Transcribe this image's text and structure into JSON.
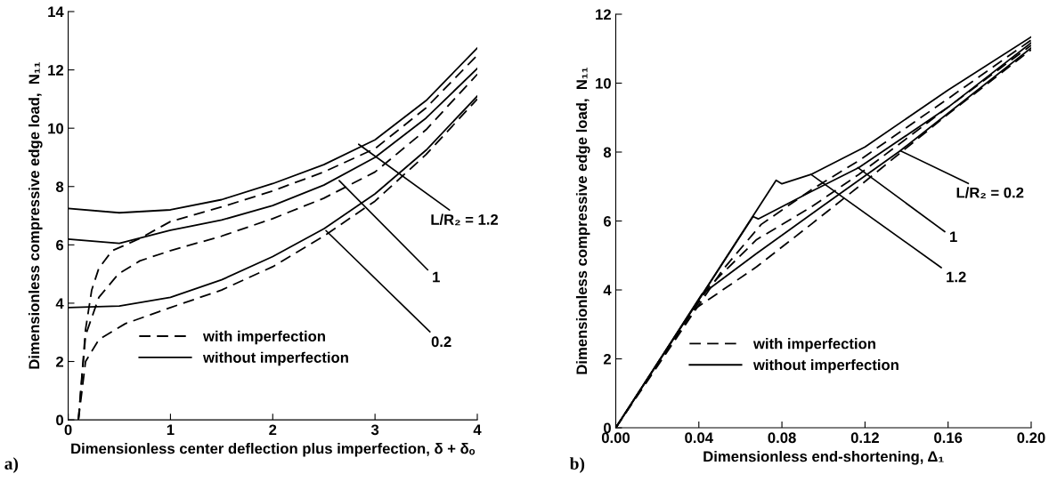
{
  "chart_data": [
    {
      "type": "line",
      "xlabel": "Dimensionless center deflection plus imperfection, δ + δₒ",
      "ylabel": "Dimensionless compressive edge load,  N₁₁",
      "xlim": [
        0,
        4
      ],
      "ylim": [
        0,
        14
      ],
      "xticks": [
        0,
        1,
        2,
        3,
        4
      ],
      "yticks": [
        0,
        2,
        4,
        6,
        8,
        10,
        12,
        14
      ],
      "grid": false,
      "legend": "bottom",
      "marker": "none",
      "series": [
        {
          "name": "with imperfection",
          "color": "#000000",
          "line_style": "dashed",
          "x": [
            0.1,
            0.17,
            0.23,
            0.3,
            0.43,
            0.69,
            1,
            1.5,
            2,
            2.5,
            3,
            3.5,
            4
          ],
          "values": [
            0,
            3.1,
            4.45,
            5.2,
            5.8,
            6.2,
            6.8,
            7.3,
            7.85,
            8.5,
            9.3,
            10.7,
            12.5
          ]
        },
        {
          "color": "#000000",
          "line_style": "dashed",
          "x": [
            0.1,
            0.17,
            0.3,
            0.49,
            0.7,
            1,
            1.5,
            2,
            2.5,
            3,
            3.5,
            4
          ],
          "values": [
            0,
            2.9,
            4.2,
            5.0,
            5.45,
            5.8,
            6.3,
            6.9,
            7.6,
            8.5,
            9.95,
            11.85
          ]
        },
        {
          "color": "#000000",
          "line_style": "dashed",
          "x": [
            0.1,
            0.17,
            0.3,
            0.56,
            1,
            1.5,
            2,
            2.5,
            3,
            3.5,
            4
          ],
          "values": [
            0,
            2.0,
            2.75,
            3.3,
            3.85,
            4.45,
            5.25,
            6.3,
            7.5,
            9.1,
            11.0
          ]
        },
        {
          "name": "without imperfection",
          "color": "#000000",
          "line_style": "solid",
          "x": [
            0,
            0.5,
            1,
            1.5,
            2,
            2.5,
            3,
            3.5,
            4
          ],
          "values": [
            7.25,
            7.1,
            7.2,
            7.55,
            8.1,
            8.75,
            9.6,
            10.95,
            12.75
          ]
        },
        {
          "color": "#000000",
          "line_style": "solid",
          "x": [
            0,
            0.5,
            1,
            1.5,
            2,
            2.5,
            3,
            3.5,
            4
          ],
          "values": [
            6.2,
            6.05,
            6.5,
            6.85,
            7.35,
            8.05,
            9.0,
            10.35,
            12.05
          ]
        },
        {
          "color": "#000000",
          "line_style": "solid",
          "x": [
            0,
            0.5,
            1,
            1.5,
            2,
            2.5,
            3,
            3.5,
            4
          ],
          "values": [
            3.85,
            3.9,
            4.2,
            4.8,
            5.6,
            6.55,
            7.75,
            9.25,
            11.1
          ]
        }
      ],
      "annotations": [
        {
          "text": "L/R₂ = 1.2",
          "x": 2.84,
          "y": 9.45
        },
        {
          "text": "1",
          "x": 2.65,
          "y": 8.2
        },
        {
          "text": "0.2",
          "x": 2.52,
          "y": 6.49
        },
        "a)"
      ]
    },
    {
      "type": "line",
      "xlabel": "Dimensionless end-shortening, Δ₁",
      "ylabel": "Dimensionless compressive edge load,  N₁₁",
      "xlim": [
        0,
        0.2
      ],
      "ylim": [
        0,
        12
      ],
      "xticks": [
        {
          "value": 0,
          "label": "0.00"
        },
        {
          "value": 0.04,
          "label": "0.04"
        },
        {
          "value": 0.08,
          "label": "0.08"
        },
        {
          "value": 0.12,
          "label": "0.12"
        },
        {
          "value": 0.16,
          "label": "0.16"
        },
        {
          "value": 0.2,
          "label": "0.20"
        }
      ],
      "yticks": [
        0,
        2,
        4,
        6,
        8,
        10,
        12
      ],
      "grid": false,
      "legend": "bottom",
      "marker": "none",
      "series": [
        {
          "name": "with imperfection",
          "color": "#000000",
          "line_style": "dashed",
          "x": [
            0,
            0.0513,
            0.07,
            0.094,
            0.117,
            0.16,
            0.2
          ],
          "values": [
            0,
            4.57,
            5.9,
            6.9,
            7.75,
            9.55,
            11.25
          ]
        },
        {
          "color": "#000000",
          "line_style": "dashed",
          "x": [
            0,
            0.045,
            0.0678,
            0.094,
            0.117,
            0.16,
            0.2
          ],
          "values": [
            0,
            4.1,
            5.46,
            6.4,
            7.35,
            9.3,
            11.1
          ]
        },
        {
          "color": "#000000",
          "line_style": "dashed",
          "x": [
            0,
            0.0364,
            0.0678,
            0.094,
            0.117,
            0.16,
            0.2
          ],
          "values": [
            0,
            3.38,
            4.67,
            5.9,
            7.0,
            9.1,
            10.97
          ]
        },
        {
          "name": "without imperfection",
          "color": "#000000",
          "line_style": "solid",
          "x": [
            0,
            0.0772,
            0.08,
            0.094,
            0.12,
            0.16,
            0.2
          ],
          "values": [
            0,
            7.18,
            7.08,
            7.35,
            8.15,
            9.8,
            11.34
          ]
        },
        {
          "color": "#000000",
          "line_style": "solid",
          "x": [
            0,
            0.0661,
            0.0686,
            0.094,
            0.117,
            0.16,
            0.2
          ],
          "values": [
            0,
            6.13,
            6.06,
            6.85,
            7.55,
            9.3,
            11.17
          ]
        },
        {
          "color": "#000000",
          "line_style": "solid",
          "x": [
            0,
            0.0414,
            0.0678,
            0.1,
            0.137,
            0.17,
            0.2
          ],
          "values": [
            0,
            3.87,
            5.06,
            6.45,
            8.04,
            9.6,
            11.02
          ]
        }
      ],
      "annotations": [
        {
          "text": "L/R₂ = 0.2",
          "x": 0.137,
          "y": 8.04
        },
        {
          "text": "1",
          "x": 0.1165,
          "y": 7.55
        },
        {
          "text": "1.2",
          "x": 0.094,
          "y": 7.35
        },
        "b)"
      ]
    }
  ]
}
